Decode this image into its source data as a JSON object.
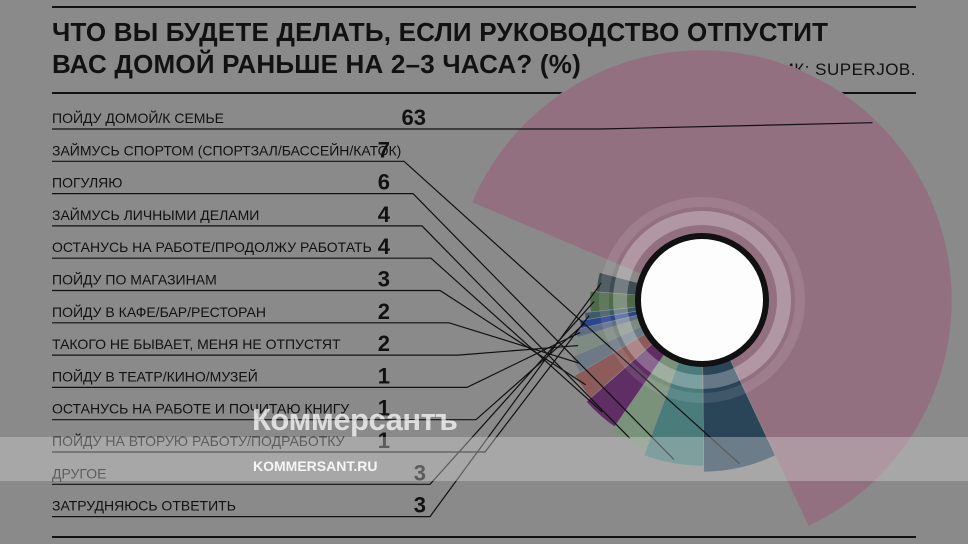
{
  "title_line1": "ЧТО ВЫ БУДЕТЕ ДЕЛАТЬ, ЕСЛИ РУКОВОДСТВО ОТПУСТИТ",
  "title_line2": "ВАС ДОМОЙ РАНЬШЕ НА 2–3 ЧАСА? (%)",
  "source": "ИСТОЧНИК: SUPERJOB.",
  "watermark": {
    "logo": "Коммерсантъ",
    "url": "KOMMERSANT.RU"
  },
  "chart_data": {
    "type": "pie",
    "title": "ЧТО ВЫ БУДЕТЕ ДЕЛАТЬ, ЕСЛИ РУКОВОДСТВО ОТПУСТИТ ВАС ДОМОЙ РАНЬШЕ НА 2–3 ЧАСА? (%)",
    "unit": "%",
    "donut": true,
    "legend": "left",
    "categories": [
      "ПОЙДУ ДОМОЙ/К СЕМЬЕ",
      "ЗАЙМУСЬ СПОРТОМ (СПОРТЗАЛ/БАССЕЙН/КАТОК)",
      "ПОГУЛЯЮ",
      "ЗАЙМУСЬ ЛИЧНЫМИ ДЕЛАМИ",
      "ОСТАНУСЬ НА РАБОТЕ/ПРОДОЛЖУ РАБОТАТЬ",
      "ПОЙДУ ПО МАГАЗИНАМ",
      "ПОЙДУ В КАФЕ/БАР/РЕСТОРАН",
      "ТАКОГО НЕ БЫВАЕТ, МЕНЯ НЕ ОТПУСТЯТ",
      "ПОЙДУ В ТЕАТР/КИНО/МУЗЕЙ",
      "ОСТАНУСЬ НА РАБОТЕ И ПОЧИТАЮ КНИГУ",
      "ПОЙДУ НА ВТОРУЮ РАБОТУ/ПОДРАБОТКУ",
      "ДРУГОЕ",
      "ЗАТРУДНЯЮСЬ ОТВЕТИТЬ"
    ],
    "values": [
      63,
      7,
      6,
      4,
      4,
      3,
      2,
      2,
      1,
      1,
      1,
      3,
      3
    ],
    "colors": [
      "#93707f",
      "#2a4458",
      "#4a7c7c",
      "#7a917a",
      "#5e2e64",
      "#8e5b5b",
      "#6d7a86",
      "#7d8b82",
      "#5e6e87",
      "#2a458f",
      "#3e5b68",
      "#4e6a4a",
      "#3f4c52"
    ]
  }
}
